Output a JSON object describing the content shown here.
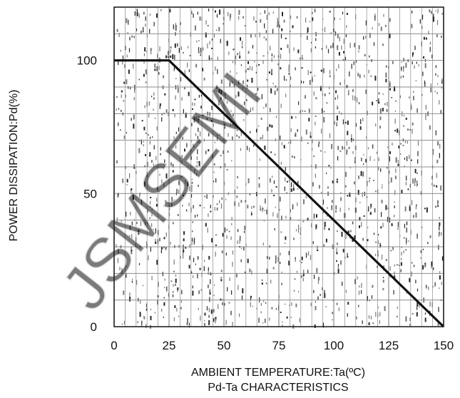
{
  "chart_data": {
    "type": "line",
    "x": [
      0,
      25,
      150
    ],
    "series": [
      {
        "values": [
          100,
          100,
          0
        ]
      }
    ],
    "xlabel": "AMBIENT TEMPERATURE:Ta(ºC)",
    "ylabel": "POWER DISSIPATION:Pd(%)",
    "caption": "Pd-Ta CHARACTERISTICS",
    "x_ticks": [
      "0",
      "25",
      "50",
      "75",
      "100",
      "125",
      "150"
    ],
    "y_ticks": [
      "0",
      "50",
      "100"
    ],
    "xlim": [
      0,
      150
    ],
    "ylim": [
      0,
      120
    ],
    "grid": true,
    "watermark": "JSMSEMI",
    "colors": {
      "line": "#111111",
      "grid": "#8c8c8c",
      "frame": "#222222"
    }
  }
}
